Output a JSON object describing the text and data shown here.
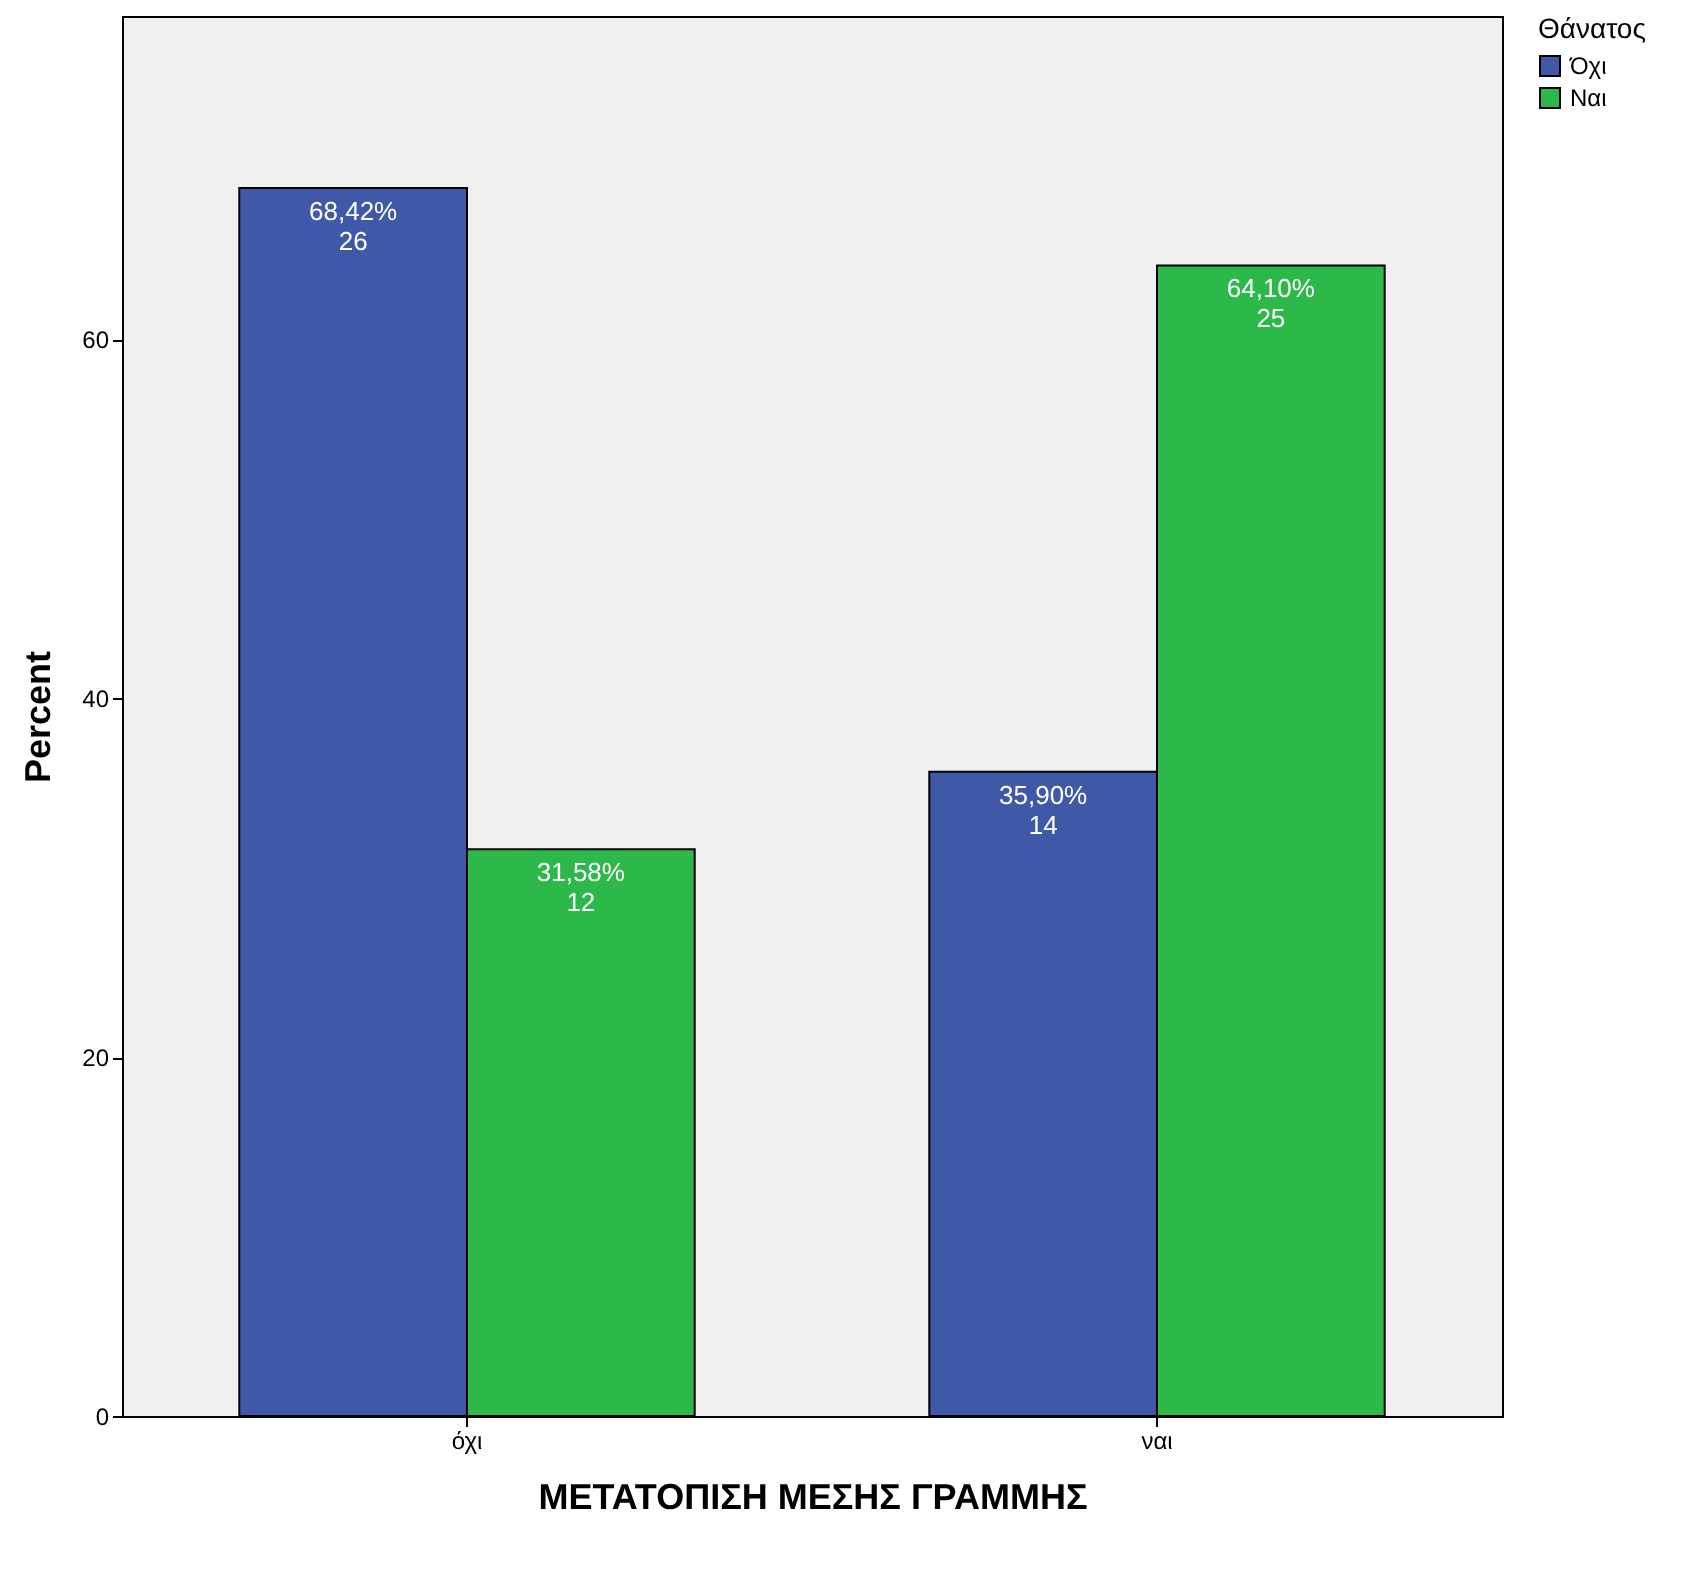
{
  "chart_data": {
    "type": "bar",
    "xlabel": "ΜΕΤΑΤΟΠΙΣΗ ΜΕΣΗΣ ΓΡΑΜΜΗΣ",
    "ylabel": "Percent",
    "legend_title": "Θάνατος",
    "categories": [
      "όχι",
      "ναι"
    ],
    "series": [
      {
        "name": "Όχι",
        "color": "#3f58a8",
        "values": [
          68.42,
          35.9
        ],
        "value_labels": [
          "68,42%\n26",
          "35,90%\n14"
        ]
      },
      {
        "name": "Ναι",
        "color": "#2db84a",
        "values": [
          31.58,
          64.1
        ],
        "value_labels": [
          "31,58%\n12",
          "64,10%\n25"
        ]
      }
    ],
    "ylim": [
      0,
      78
    ],
    "yticks": [
      0,
      20,
      40,
      60
    ],
    "grid": false,
    "legend": "top right"
  }
}
